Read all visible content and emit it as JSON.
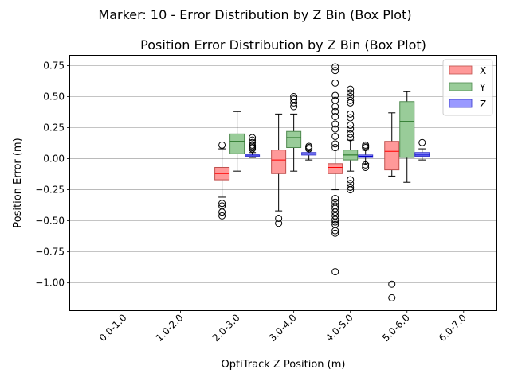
{
  "chart_data": {
    "type": "box",
    "suptitle": "Marker: 10 - Error Distribution by Z Bin (Box Plot)",
    "title": "Position Error Distribution by Z Bin (Box Plot)",
    "xlabel": "OptiTrack Z Position (m)",
    "ylabel": "Position Error (m)",
    "categories": [
      "0.0-1.0",
      "1.0-2.0",
      "2.0-3.0",
      "3.0-4.0",
      "4.0-5.0",
      "5.0-6.0",
      "6.0-7.0"
    ],
    "ylim": [
      -1.22,
      0.83
    ],
    "yticks": [
      -1.0,
      -0.75,
      -0.5,
      -0.25,
      0.0,
      0.25,
      0.5,
      0.75
    ],
    "ytick_labels": [
      "−1.00",
      "−0.75",
      "−0.50",
      "−0.25",
      "0.00",
      "0.25",
      "0.50",
      "0.75"
    ],
    "grid": "y",
    "legend_position": "top-right",
    "series": [
      {
        "name": "X",
        "color": "#ff9999",
        "edge": "#c0504d",
        "median_color": "#ff0000",
        "boxes": [
          null,
          null,
          {
            "min": -0.31,
            "q1": -0.17,
            "median": -0.12,
            "q3": -0.07,
            "max": 0.08,
            "outliers": [
              0.11,
              -0.36,
              -0.38,
              -0.43,
              -0.46
            ]
          },
          {
            "min": -0.42,
            "q1": -0.12,
            "median": -0.01,
            "q3": 0.07,
            "max": 0.36,
            "outliers": [
              -0.48,
              -0.52
            ]
          },
          {
            "min": -0.25,
            "q1": -0.12,
            "median": -0.07,
            "q3": -0.04,
            "max": 0.07,
            "outliers": [
              0.74,
              0.71,
              0.61,
              0.51,
              0.47,
              0.42,
              0.38,
              0.34,
              0.28,
              0.24,
              0.18,
              0.12,
              0.09,
              -0.32,
              -0.35,
              -0.38,
              -0.4,
              -0.43,
              -0.46,
              -0.49,
              -0.51,
              -0.53,
              -0.58,
              -0.6,
              -0.91
            ]
          },
          {
            "min": -0.14,
            "q1": -0.09,
            "median": 0.06,
            "q3": 0.14,
            "max": 0.37,
            "outliers": [
              -1.01,
              -1.12
            ]
          },
          null
        ]
      },
      {
        "name": "Y",
        "color": "#99cc99",
        "edge": "#4f8a4f",
        "median_color": "#1a6b1a",
        "boxes": [
          null,
          null,
          {
            "min": -0.1,
            "q1": 0.04,
            "median": 0.14,
            "q3": 0.2,
            "max": 0.38,
            "outliers": []
          },
          {
            "min": -0.1,
            "q1": 0.09,
            "median": 0.17,
            "q3": 0.22,
            "max": 0.36,
            "outliers": [
              0.42,
              0.45,
              0.48,
              0.5
            ]
          },
          {
            "min": -0.1,
            "q1": -0.01,
            "median": 0.03,
            "q3": 0.07,
            "max": 0.15,
            "outliers": [
              0.56,
              0.53,
              0.5,
              0.47,
              0.45,
              0.36,
              0.33,
              0.27,
              0.24,
              0.2,
              0.17,
              -0.17,
              -0.2,
              -0.23,
              -0.25
            ]
          },
          {
            "min": -0.19,
            "q1": 0.01,
            "median": 0.3,
            "q3": 0.46,
            "max": 0.54,
            "outliers": []
          },
          null
        ]
      },
      {
        "name": "Z",
        "color": "#9999ff",
        "edge": "#3333cc",
        "median_color": "#0000cc",
        "boxes": [
          null,
          null,
          {
            "min": 0.01,
            "q1": 0.02,
            "median": 0.03,
            "q3": 0.03,
            "max": 0.05,
            "outliers": [
              0.17,
              0.15,
              0.13,
              0.11,
              0.1,
              0.09,
              0.08
            ]
          },
          {
            "min": -0.01,
            "q1": 0.03,
            "median": 0.04,
            "q3": 0.05,
            "max": 0.07,
            "outliers": [
              0.1,
              0.09,
              0.08
            ]
          },
          {
            "min": -0.04,
            "q1": 0.01,
            "median": 0.02,
            "q3": 0.03,
            "max": 0.07,
            "outliers": [
              0.11,
              0.1,
              0.09,
              -0.05,
              -0.07
            ]
          },
          {
            "min": -0.01,
            "q1": 0.02,
            "median": 0.03,
            "q3": 0.05,
            "max": 0.08,
            "outliers": [
              0.13
            ]
          },
          null
        ]
      }
    ]
  }
}
